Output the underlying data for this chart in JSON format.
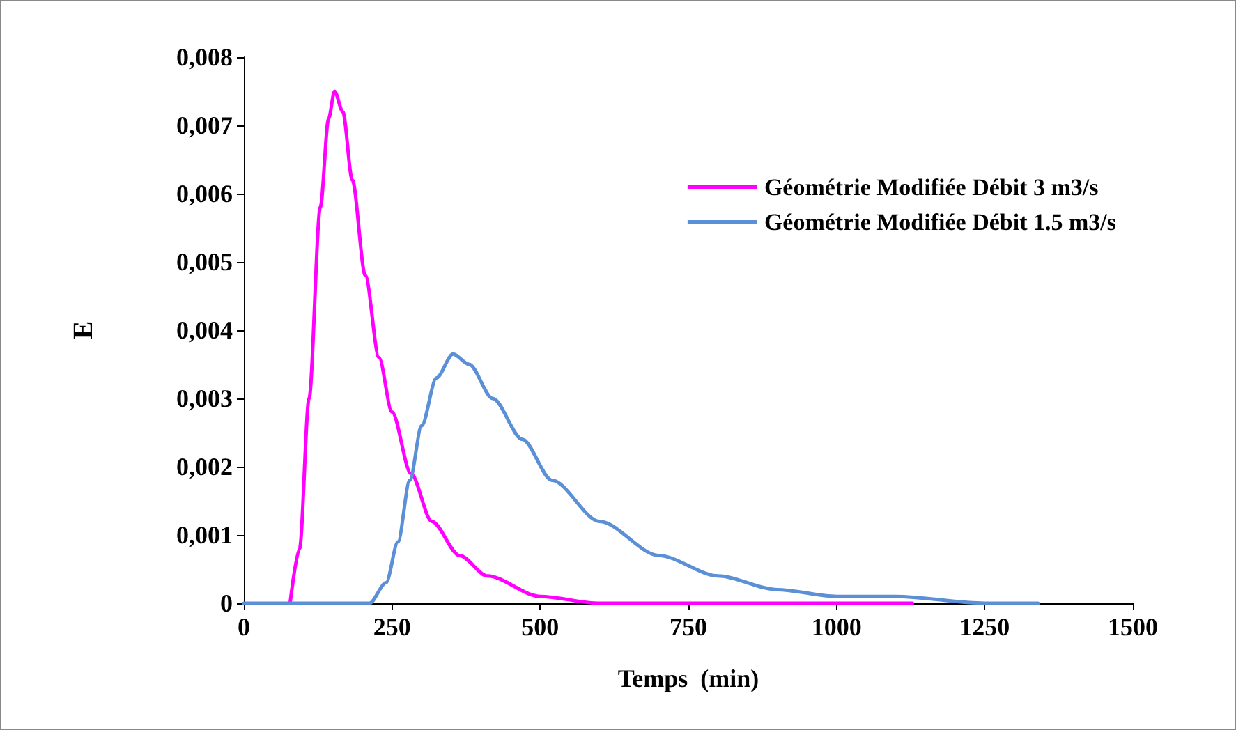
{
  "chart_data": {
    "type": "line",
    "xlabel": "Temps  (min)",
    "ylabel": "E",
    "series": [
      {
        "name": "Géométrie Modifiée Débit 3 m3/s",
        "color": "#ff00ff",
        "x": [
          78,
          94,
          110,
          129,
          143,
          153,
          167,
          183,
          205,
          228,
          250,
          282,
          317,
          364,
          411,
          500,
          600,
          764,
          1128
        ],
        "values": [
          0,
          0.0008,
          0.003,
          0.0058,
          0.0071,
          0.0075,
          0.0072,
          0.0062,
          0.0048,
          0.0036,
          0.0028,
          0.0019,
          0.0012,
          0.0007,
          0.0004,
          0.0001,
          0,
          0,
          0
        ]
      },
      {
        "name": "Géométrie Modifiée Débit 1.5 m3/s",
        "color": "#5b8fd6",
        "x": [
          0,
          212,
          240,
          260,
          280,
          300,
          325,
          353,
          380,
          420,
          470,
          520,
          600,
          700,
          800,
          900,
          1000,
          1100,
          1250,
          1340
        ],
        "values": [
          0,
          0,
          0.0003,
          0.0009,
          0.0018,
          0.0026,
          0.0033,
          0.00365,
          0.0035,
          0.003,
          0.0024,
          0.0018,
          0.0012,
          0.0007,
          0.0004,
          0.0002,
          0.0001,
          0.0001,
          0,
          0
        ]
      }
    ],
    "xlim": [
      0,
      1500
    ],
    "xticks": [
      0,
      250,
      500,
      750,
      1000,
      1250,
      1500
    ],
    "ylim": [
      0,
      0.008
    ],
    "yticks": [
      0,
      {
        "value": 0.001,
        "label": "0,001"
      },
      {
        "value": 0.002,
        "label": "0,002"
      },
      {
        "value": 0.003,
        "label": "0,003"
      },
      {
        "value": 0.004,
        "label": "0,004"
      },
      {
        "value": 0.005,
        "label": "0,005"
      },
      {
        "value": 0.006,
        "label": "0,006"
      },
      {
        "value": 0.007,
        "label": "0,007"
      },
      {
        "value": 0.008,
        "label": "0,008"
      }
    ],
    "grid": false,
    "legend": "top right",
    "marker": "none",
    "line_style": "solid"
  }
}
